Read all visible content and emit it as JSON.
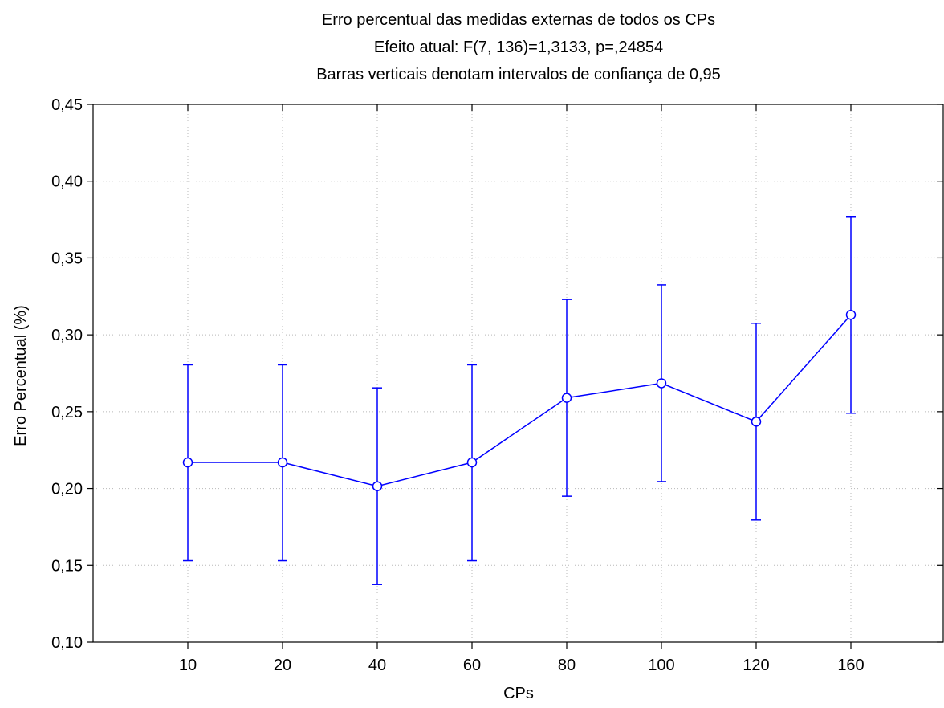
{
  "chart_data": {
    "type": "line",
    "title": "Erro percentual das medidas externas de todos os CPs",
    "subtitle": "Efeito atual: F(7, 136)=1,3133, p=,24854",
    "note": "Barras verticais denotam intervalos de confiança de 0,95",
    "xlabel": "CPs",
    "ylabel": "Erro Percentual (%)",
    "categories": [
      "10",
      "20",
      "40",
      "60",
      "80",
      "100",
      "120",
      "160"
    ],
    "series": [
      {
        "values": [
          0.217,
          0.217,
          0.2015,
          0.217,
          0.259,
          0.2685,
          0.2435,
          0.313
        ],
        "lower": [
          0.153,
          0.153,
          0.1375,
          0.153,
          0.195,
          0.2045,
          0.1795,
          0.249
        ],
        "upper": [
          0.2805,
          0.2805,
          0.2655,
          0.2805,
          0.323,
          0.3325,
          0.3075,
          0.377
        ],
        "color": "#0000ff"
      }
    ],
    "ylim": [
      0.1,
      0.45
    ],
    "yticks": [
      0.1,
      0.15,
      0.2,
      0.25,
      0.3,
      0.35,
      0.4,
      0.45
    ],
    "ytick_labels": [
      "0,10",
      "0,15",
      "0,20",
      "0,25",
      "0,30",
      "0,35",
      "0,40",
      "0,45"
    ],
    "grid": true,
    "grid_style": "dotted",
    "error_bars": "95% confidence interval"
  }
}
